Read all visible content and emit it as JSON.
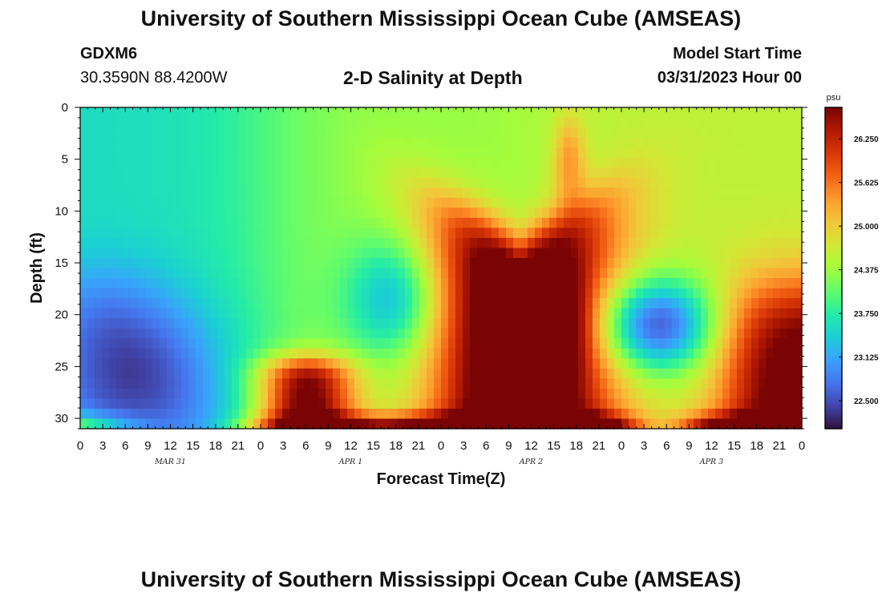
{
  "header": {
    "title": "University of Southern Mississippi Ocean Cube (AMSEAS)",
    "station": "GDXM6",
    "coords": "30.3590N  88.4200W",
    "subtitle": "2-D Salinity at Depth",
    "start_label": "Model Start Time",
    "start_value": "03/31/2023 Hour 00"
  },
  "footer": {
    "title": "University of Southern Mississippi Ocean Cube (AMSEAS)"
  },
  "chart_data": {
    "type": "heatmap",
    "title": "2-D Salinity at Depth",
    "xlabel": "Forecast Time(Z)",
    "ylabel": "Depth (ft)",
    "xlim_hours": [
      0,
      96
    ],
    "ylim_ft": [
      0,
      31
    ],
    "x_tick_labels": [
      "0",
      "3",
      "6",
      "9",
      "12",
      "15",
      "18",
      "21",
      "0",
      "3",
      "6",
      "9",
      "12",
      "15",
      "18",
      "21",
      "0",
      "3",
      "6",
      "9",
      "12",
      "15",
      "18",
      "21",
      "0",
      "3",
      "6",
      "9",
      "12",
      "15",
      "18",
      "21",
      "0"
    ],
    "y_ticks": [
      0,
      5,
      10,
      15,
      20,
      25,
      30
    ],
    "day_labels": [
      {
        "text": "MAR 31",
        "hour": 12
      },
      {
        "text": "APR 1",
        "hour": 36
      },
      {
        "text": "APR 2",
        "hour": 60
      },
      {
        "text": "APR 3",
        "hour": 84
      }
    ],
    "colorbar": {
      "unit": "psu",
      "min": 22.1,
      "max": 26.7,
      "ticks": [
        "26.250",
        "25.625",
        "25.000",
        "24.375",
        "23.750",
        "23.125",
        "22.500"
      ],
      "colors": [
        "#30123b",
        "#4145ab",
        "#4675ed",
        "#39a2fc",
        "#1bcfd4",
        "#24eca6",
        "#61fc6c",
        "#a4fc3b",
        "#d1e834",
        "#f3c63a",
        "#fe9b2d",
        "#f36315",
        "#d93806",
        "#b11901",
        "#7a0403"
      ]
    },
    "grid": false
  }
}
